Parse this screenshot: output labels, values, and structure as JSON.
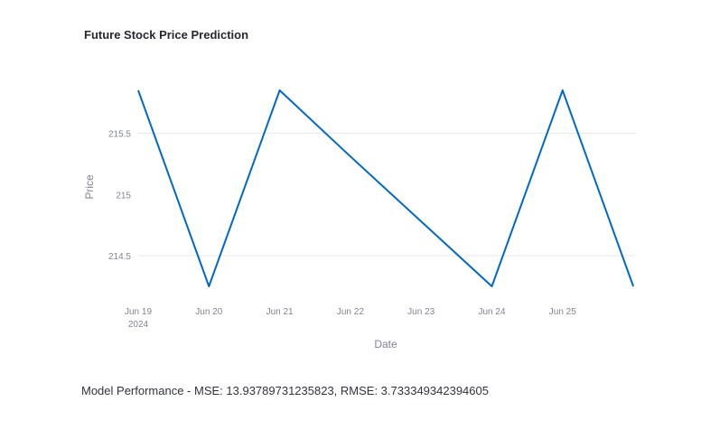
{
  "chart_data": {
    "type": "line",
    "title": "Future Stock Price Prediction",
    "xlabel": "Date",
    "ylabel": "Price",
    "x": [
      "2024-06-19",
      "2024-06-20",
      "2024-06-21",
      "2024-06-22",
      "2024-06-23",
      "2024-06-24",
      "2024-06-25",
      "2024-06-26"
    ],
    "y": [
      215.85,
      214.25,
      215.85,
      215.31,
      214.78,
      214.25,
      215.85,
      214.25
    ],
    "x_ticks": [
      "Jun 19",
      "Jun 20",
      "Jun 21",
      "Jun 22",
      "Jun 23",
      "Jun 24",
      "Jun 25"
    ],
    "x_tick_year": "2024",
    "y_ticks": [
      {
        "value": 214.5,
        "label": "214.5"
      },
      {
        "value": 215,
        "label": "215"
      },
      {
        "value": 215.5,
        "label": "215.5"
      }
    ],
    "ylim": [
      214.18,
      215.88
    ],
    "grid": true,
    "line_color": "#0068c9",
    "grid_color": "#e6e9ef"
  },
  "footer": {
    "text": "Model Performance - MSE: 13.93789731235823, RMSE: 3.733349342394605"
  }
}
